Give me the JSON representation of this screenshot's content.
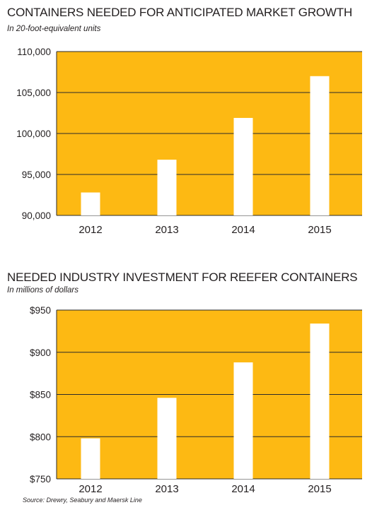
{
  "chart_data": [
    {
      "type": "bar",
      "title": "CONTAINERS NEEDED FOR ANTICIPATED MARKET GROWTH",
      "subtitle": "In 20-foot-equivalent units",
      "categories": [
        "2012",
        "2013",
        "2014",
        "2015"
      ],
      "values": [
        92800,
        96800,
        101900,
        107000
      ],
      "ylim": [
        90000,
        110000
      ],
      "yticks": [
        90000,
        95000,
        100000,
        105000,
        110000
      ],
      "ytick_labels": [
        "90,000",
        "95,000",
        "100,000",
        "105,000",
        "110,000"
      ],
      "grid": true,
      "background_color": "#fdb913",
      "bar_color": "#ffffff"
    },
    {
      "type": "bar",
      "title": "NEEDED INDUSTRY INVESTMENT FOR REEFER CONTAINERS",
      "subtitle": "In millions of dollars",
      "categories": [
        "2012",
        "2013",
        "2014",
        "2015"
      ],
      "values": [
        798,
        846,
        888,
        934
      ],
      "ylim": [
        750,
        950
      ],
      "yticks": [
        750,
        800,
        850,
        900,
        950
      ],
      "ytick_labels": [
        "$750",
        "$800",
        "$850",
        "$900",
        "$950"
      ],
      "grid": true,
      "background_color": "#fdb913",
      "bar_color": "#ffffff"
    }
  ],
  "source": "Source: Drewry, Seabury and Maersk Line"
}
